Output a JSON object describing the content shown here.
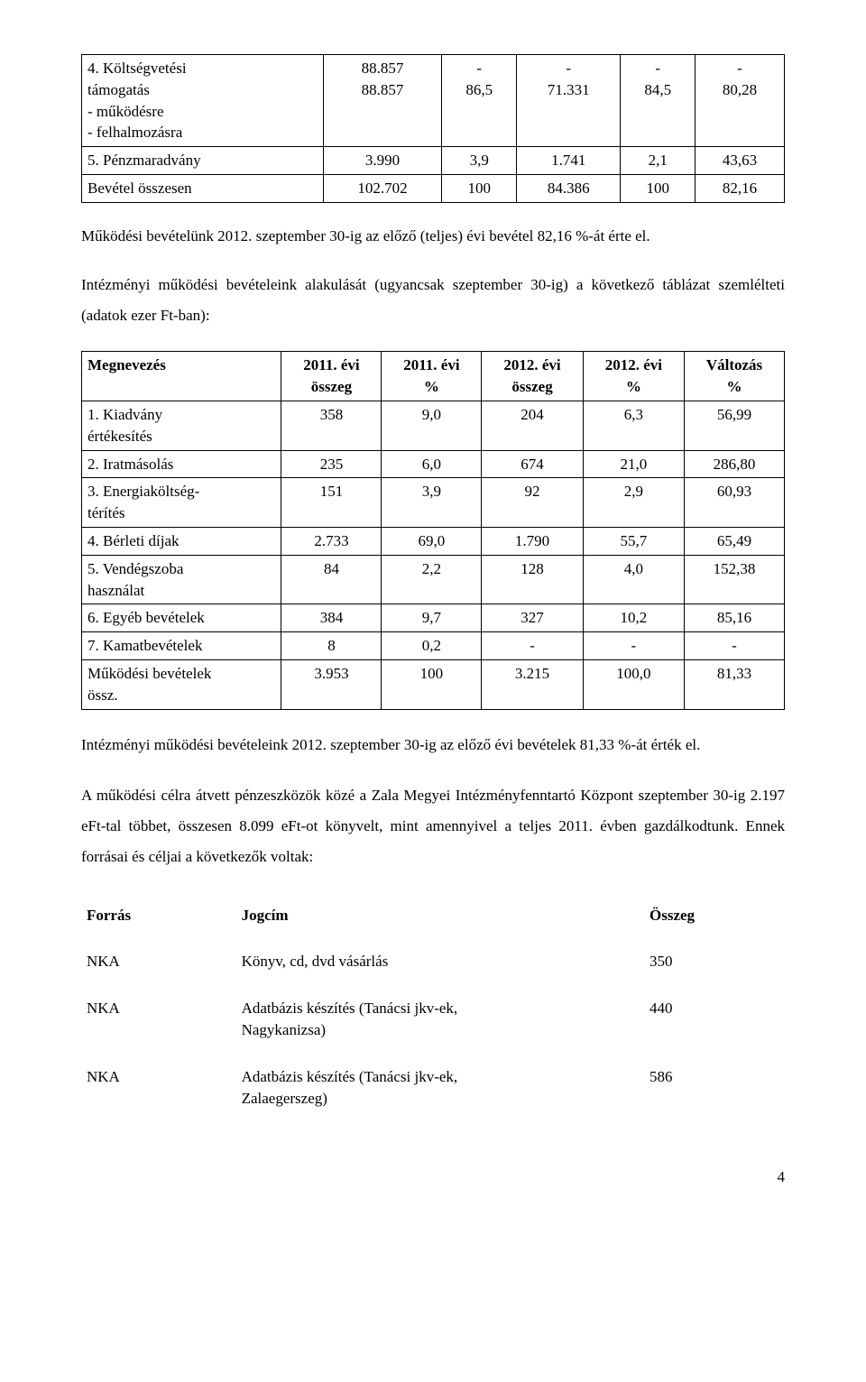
{
  "table1": {
    "rows": [
      {
        "label": "4. Költségvetési\ntámogatás\n- működésre\n- felhalmozásra",
        "c1": "88.857\n88.857",
        "c2": "-\n86,5",
        "c3": "-\n71.331",
        "c4": "-\n84,5",
        "c5": "-\n80,28"
      },
      {
        "label": "5. Pénzmaradvány",
        "c1": "3.990",
        "c2": "3,9",
        "c3": "1.741",
        "c4": "2,1",
        "c5": "43,63"
      },
      {
        "label": "Bevétel összesen",
        "c1": "102.702",
        "c2": "100",
        "c3": "84.386",
        "c4": "100",
        "c5": "82,16"
      }
    ]
  },
  "para1": "Működési bevételünk 2012. szeptember 30-ig az előző (teljes) évi bevétel 82,16 %-át érte el.",
  "para2": "Intézményi működési bevételeink alakulását (ugyancsak szeptember 30-ig) a következő táblázat szemlélteti (adatok ezer Ft-ban):",
  "table2": {
    "headers": [
      "Megnevezés",
      "2011. évi\nösszeg",
      "2011. évi\n%",
      "2012. évi\nösszeg",
      "2012. évi\n%",
      "Változás\n%"
    ],
    "rows": [
      {
        "label": "1. Kiadvány\nértékesítés",
        "v": [
          "358",
          "9,0",
          "204",
          "6,3",
          "56,99"
        ]
      },
      {
        "label": "2. Iratmásolás",
        "v": [
          "235",
          "6,0",
          "674",
          "21,0",
          "286,80"
        ]
      },
      {
        "label": "3. Energiaköltség-\ntérítés",
        "v": [
          "151",
          "3,9",
          "92",
          "2,9",
          "60,93"
        ]
      },
      {
        "label": "4. Bérleti díjak",
        "v": [
          "2.733",
          "69,0",
          "1.790",
          "55,7",
          "65,49"
        ]
      },
      {
        "label": "5. Vendégszoba\nhasználat",
        "v": [
          "84",
          "2,2",
          "128",
          "4,0",
          "152,38"
        ]
      },
      {
        "label": "6. Egyéb bevételek",
        "v": [
          "384",
          "9,7",
          "327",
          "10,2",
          "85,16"
        ]
      },
      {
        "label": "7. Kamatbevételek",
        "v": [
          "8",
          "0,2",
          "-",
          "-",
          "-"
        ]
      },
      {
        "label": "Működési bevételek\nössz.",
        "v": [
          "3.953",
          "100",
          "3.215",
          "100,0",
          "81,33"
        ]
      }
    ]
  },
  "para3": "Intézményi működési bevételeink 2012. szeptember 30-ig az előző évi bevételek 81,33 %-át érték el.",
  "para4": "A működési célra átvett pénzeszközök közé a Zala Megyei Intézményfenntartó Központ szeptember 30-ig 2.197 eFt-tal többet, összesen 8.099 eFt-ot könyvelt, mint amennyivel a teljes 2011. évben gazdálkodtunk. Ennek forrásai és céljai a következők voltak:",
  "table3": {
    "headers": [
      "Forrás",
      "Jogcím",
      "Összeg"
    ],
    "rows": [
      {
        "src": "NKA",
        "title": "Könyv, cd, dvd vásárlás",
        "amt": "350"
      },
      {
        "src": "NKA",
        "title": "Adatbázis készítés (Tanácsi jkv-ek,\nNagykanizsa)",
        "amt": "440"
      },
      {
        "src": "NKA",
        "title": "Adatbázis készítés (Tanácsi jkv-ek,\nZalaegerszeg)",
        "amt": "586"
      }
    ]
  },
  "page_number": "4"
}
